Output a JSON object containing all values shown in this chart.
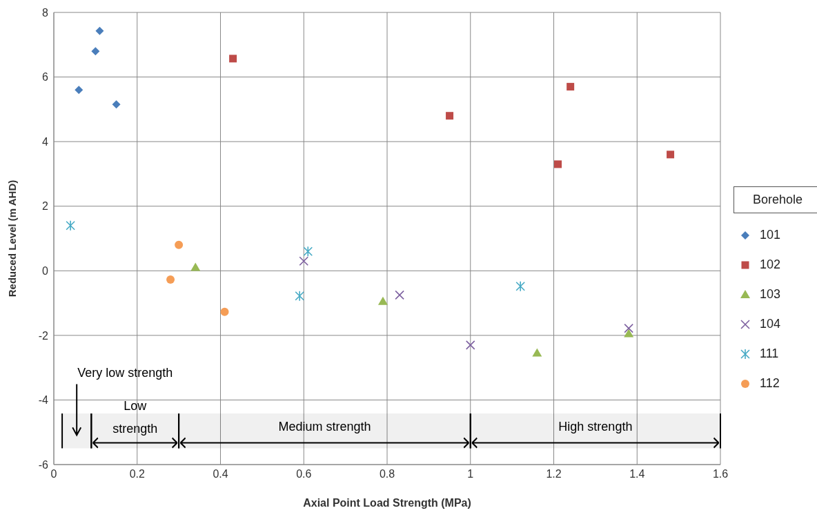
{
  "chart_data": {
    "type": "scatter",
    "xlabel": "Axial Point Load Strength (MPa)",
    "ylabel": "Reduced Level (m AHD)",
    "legend_title": "Borehole",
    "legend": "right",
    "grid": true,
    "xlim": [
      0,
      1.6
    ],
    "xticks": [
      0,
      0.2,
      0.4,
      0.6,
      0.8,
      1,
      1.2,
      1.4,
      1.6
    ],
    "ylim": [
      -6,
      8
    ],
    "yticks": [
      -6,
      -4,
      -2,
      0,
      2,
      4,
      6,
      8
    ],
    "series": [
      {
        "name": "101",
        "color": "#4a7ebb",
        "marker": "diamond",
        "x": [
          0.06,
          0.1,
          0.11,
          0.15
        ],
        "values": [
          5.6,
          6.8,
          7.43,
          5.15
        ]
      },
      {
        "name": "102",
        "color": "#be4b48",
        "marker": "square",
        "x": [
          0.43,
          0.95,
          1.21,
          1.24,
          1.48
        ],
        "values": [
          6.57,
          4.8,
          3.3,
          5.7,
          3.6
        ]
      },
      {
        "name": "103",
        "color": "#98b954",
        "marker": "triangle",
        "x": [
          0.34,
          0.79,
          1.16,
          1.38
        ],
        "values": [
          0.1,
          -0.95,
          -2.55,
          -1.95
        ]
      },
      {
        "name": "104",
        "color": "#7d60a0",
        "marker": "cross",
        "x": [
          0.6,
          0.83,
          1.0,
          1.38
        ],
        "values": [
          0.3,
          -0.75,
          -2.3,
          -1.78
        ]
      },
      {
        "name": "111",
        "color": "#46aac5",
        "x": [
          0.04,
          0.59,
          0.61,
          1.12
        ],
        "values": [
          1.4,
          -0.78,
          0.6,
          -0.48
        ]
      },
      {
        "name": "112",
        "color": "#f59d56",
        "marker": "circle",
        "x": [
          0.28,
          0.3,
          0.41
        ],
        "values": [
          -0.27,
          0.8,
          -1.27
        ]
      }
    ],
    "bands": [
      {
        "axis": "x",
        "from": 0.02,
        "to": 0.09,
        "label": "Very low strength",
        "color": "#000000"
      },
      {
        "axis": "x",
        "from": 0.09,
        "to": 0.3,
        "label": "Low strength",
        "color": "#000000"
      },
      {
        "axis": "x",
        "from": 0.3,
        "to": 1,
        "label": "Medium strength",
        "color": "#000000"
      },
      {
        "axis": "x",
        "from": 1,
        "to": 1.6,
        "label": "High strength",
        "color": "#000000"
      }
    ]
  }
}
